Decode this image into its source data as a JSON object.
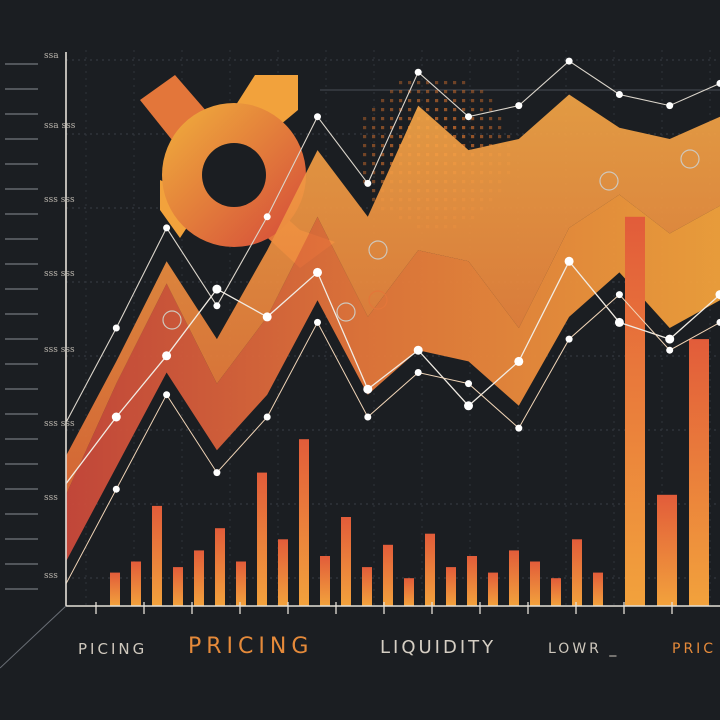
{
  "chart_data": {
    "type": "area",
    "title": "",
    "xlabel": "",
    "ylabel": "",
    "y_tick_labels": [
      "ssa",
      "ssa  sss",
      "sss  sss",
      "sss  sss",
      "sss  sss",
      "sss  sss",
      "sss",
      "sss"
    ],
    "x": [
      0,
      1,
      2,
      3,
      4,
      5,
      6,
      7,
      8,
      9,
      10,
      11,
      12,
      13
    ],
    "series": [
      {
        "values": [
          0.2,
          0.4,
          0.58,
          0.4,
          0.52,
          0.7,
          0.52,
          0.64,
          0.62,
          0.5,
          0.68,
          0.74,
          0.67,
          0.72
        ]
      },
      {
        "values": [
          0.08,
          0.25,
          0.42,
          0.28,
          0.38,
          0.55,
          0.38,
          0.46,
          0.44,
          0.36,
          0.52,
          0.6,
          0.5,
          0.55
        ]
      },
      {
        "values": [
          0.27,
          0.44,
          0.62,
          0.48,
          0.64,
          0.82,
          0.7,
          0.9,
          0.82,
          0.84,
          0.92,
          0.86,
          0.84,
          0.88
        ]
      },
      {
        "values": [
          0.22,
          0.34,
          0.45,
          0.57,
          0.52,
          0.6,
          0.39,
          0.46,
          0.36,
          0.44,
          0.62,
          0.51,
          0.48,
          0.56
        ]
      }
    ],
    "bars": [
      0.06,
      0.08,
      0.18,
      0.07,
      0.1,
      0.14,
      0.08,
      0.24,
      0.12,
      0.3,
      0.09,
      0.16,
      0.07,
      0.11,
      0.05,
      0.13,
      0.07,
      0.09,
      0.06,
      0.1,
      0.08,
      0.05,
      0.12,
      0.06,
      0.7,
      0.2,
      0.48,
      0.12,
      0.36
    ],
    "grid": true,
    "colors": {
      "background": "#1b1e22",
      "orange_light": "#f2a23c",
      "orange_mid": "#e3763a",
      "orange_dark": "#c9483a",
      "line": "#e9e3d8",
      "dot_pattern": "#c76a2c"
    }
  },
  "captions": {
    "c1": "PICING",
    "c2": "PRICING",
    "c3": "LIQUIDITY",
    "c4": "LOWR _",
    "c5": "PRIC"
  },
  "icons": [
    "pricing-logo-icon",
    "coin-icon-1",
    "coin-icon-2",
    "coin-icon-3",
    "coin-icon-4",
    "coin-icon-5"
  ]
}
